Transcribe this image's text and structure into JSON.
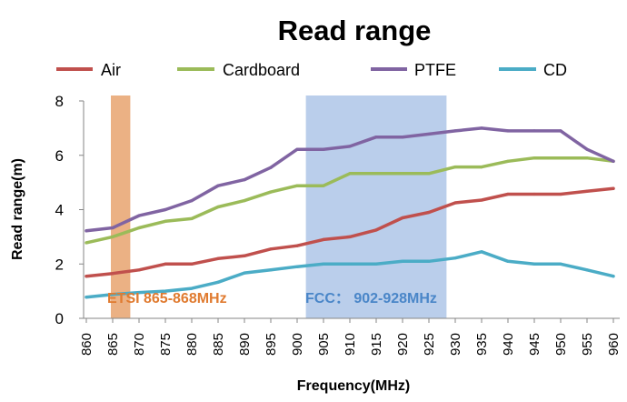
{
  "chart_data": {
    "type": "line",
    "title": "Read range",
    "xlabel": "Frequency(MHz)",
    "ylabel": "Read range(m)",
    "ylim": [
      0,
      8
    ],
    "yticks": [
      "0",
      "2",
      "4",
      "6",
      "8"
    ],
    "grid": false,
    "legend_position": "top",
    "x": [
      "860",
      "865",
      "870",
      "875",
      "880",
      "885",
      "890",
      "895",
      "900",
      "905",
      "910",
      "915",
      "920",
      "925",
      "930",
      "935",
      "940",
      "945",
      "950",
      "955",
      "960"
    ],
    "series": [
      {
        "name": "Air",
        "color": "#c0504d",
        "values": [
          1.55,
          1.65,
          1.78,
          2.0,
          2.0,
          2.2,
          2.3,
          2.55,
          2.67,
          2.9,
          3.0,
          3.25,
          3.7,
          3.9,
          4.25,
          4.35,
          4.57,
          4.57,
          4.57,
          4.68,
          4.78
        ]
      },
      {
        "name": "Cardboard",
        "color": "#9bbb59",
        "values": [
          2.78,
          3.0,
          3.33,
          3.57,
          3.67,
          4.1,
          4.33,
          4.65,
          4.88,
          4.88,
          5.33,
          5.33,
          5.33,
          5.33,
          5.57,
          5.57,
          5.78,
          5.9,
          5.9,
          5.9,
          5.78
        ]
      },
      {
        "name": "PTFE",
        "color": "#8064a2",
        "values": [
          3.22,
          3.33,
          3.78,
          4.0,
          4.33,
          4.88,
          5.1,
          5.55,
          6.22,
          6.22,
          6.33,
          6.67,
          6.67,
          6.78,
          6.9,
          7.0,
          6.9,
          6.9,
          6.9,
          6.22,
          5.78
        ]
      },
      {
        "name": "CD",
        "color": "#4bacc6",
        "values": [
          0.78,
          0.88,
          0.95,
          1.0,
          1.1,
          1.33,
          1.67,
          1.78,
          1.9,
          2.0,
          2.0,
          2.0,
          2.1,
          2.1,
          2.22,
          2.45,
          2.1,
          2.0,
          2.0,
          1.78,
          1.55
        ]
      }
    ],
    "bands": [
      {
        "label": "ETSI 865-868MHz",
        "from": 865,
        "to": 868,
        "color": "#e7a36f",
        "text_color": "#e07b30"
      },
      {
        "label": "FCC： 902-928MHz",
        "from": 902,
        "to": 928,
        "color": "#aec6e8",
        "text_color": "#4a86c8"
      }
    ]
  }
}
